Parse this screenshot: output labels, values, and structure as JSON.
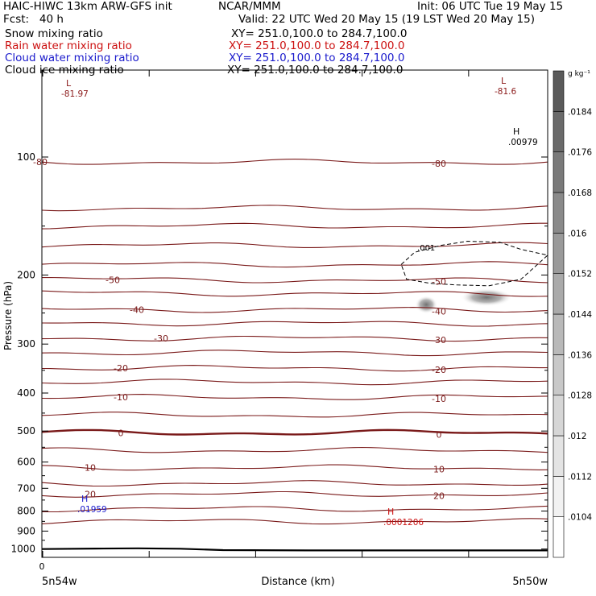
{
  "header": {
    "title_left": "HAIC-HIWC 13km ARW-GFS init",
    "title_center": "NCAR/MMM",
    "init": "Init: 06 UTC Tue 19 May 15",
    "fcst": "Fcst:   40 h",
    "valid": "Valid: 22 UTC Wed 20 May 15 (19 LST Wed 20 May 15)"
  },
  "fields": [
    {
      "label": "Snow mixing ratio",
      "xy": "XY= 251.0,100.0 to 284.7,100.0",
      "color": "#000000"
    },
    {
      "label": "Rain water mixing ratio",
      "xy": "XY= 251.0,100.0 to 284.7,100.0",
      "color": "#cc1111"
    },
    {
      "label": "Cloud water mixing ratio",
      "xy": "XY= 251.0,100.0 to 284.7,100.0",
      "color": "#1a1acc"
    },
    {
      "label": "Cloud ice mixing ratio",
      "xy": "XY= 251.0,100.0 to 284.7,100.0",
      "color": "#000000"
    }
  ],
  "chart_data": {
    "type": "cross-section contour",
    "ylabel": "Pressure (hPa)",
    "xlabel": "Distance (km)",
    "y_scale": "log",
    "ylim": [
      1050,
      60
    ],
    "xlim": [
      0,
      95
    ],
    "y_ticks": [
      100,
      200,
      300,
      400,
      500,
      600,
      700,
      800,
      900,
      1000
    ],
    "x_ticks": [
      0,
      20,
      40,
      60,
      80
    ],
    "x_tick_labels_shown": [
      {
        "x": 0,
        "label": "0"
      }
    ],
    "x_end_labels": {
      "left": "5n54w",
      "right": "5n50w"
    },
    "temperature_contours_C": [
      {
        "level": -80,
        "label": "-80",
        "p_left": 103,
        "p_right": 103
      },
      {
        "level": -70,
        "p_left": 135,
        "p_right": 135
      },
      {
        "level": -65,
        "p_left": 150,
        "p_right": 150
      },
      {
        "level": -60,
        "p_left": 168,
        "p_right": 168
      },
      {
        "level": -55,
        "p_left": 188,
        "p_right": 188
      },
      {
        "level": -50,
        "label": "-50",
        "p_left": 205,
        "p_right": 207
      },
      {
        "level": -45,
        "p_left": 222,
        "p_right": 224
      },
      {
        "level": -40,
        "label": "-40",
        "p_left": 245,
        "p_right": 245
      },
      {
        "level": -35,
        "p_left": 265,
        "p_right": 266
      },
      {
        "level": -30,
        "label": "-30",
        "p_left": 290,
        "p_right": 290
      },
      {
        "level": -25,
        "p_left": 315,
        "p_right": 316
      },
      {
        "level": -20,
        "label": "-20",
        "p_left": 345,
        "p_right": 346
      },
      {
        "level": -15,
        "p_left": 375,
        "p_right": 375
      },
      {
        "level": -10,
        "label": "-10",
        "p_left": 410,
        "p_right": 410
      },
      {
        "level": -5,
        "p_left": 455,
        "p_right": 455
      },
      {
        "level": 0,
        "label": "0",
        "p_left": 505,
        "p_right": 505
      },
      {
        "level": 5,
        "p_left": 560,
        "p_right": 560
      },
      {
        "level": 10,
        "label": "10",
        "p_left": 620,
        "p_right": 620
      },
      {
        "level": 15,
        "p_left": 680,
        "p_right": 680
      },
      {
        "level": 20,
        "label": "20",
        "p_left": 725,
        "p_right": 725
      },
      {
        "level": 25,
        "p_left": 790,
        "p_right": 790
      },
      {
        "level": 30,
        "p_left": 850,
        "p_right": 850
      }
    ],
    "extrema_labels": [
      {
        "text": "L",
        "sub": "-81.97",
        "color": "#8b1a1a"
      },
      {
        "text": "L",
        "sub": "-81.6",
        "color": "#8b1a1a"
      },
      {
        "text": "H",
        "sub": ".00979",
        "color": "#000000"
      },
      {
        "text": "H",
        "sub": ".01959",
        "color": "#1a1acc"
      },
      {
        "text": "H",
        "sub": ".0001206",
        "color": "#cc1111"
      }
    ],
    "snow_contour_label": ".001",
    "colorbar": {
      "unit": "g kg⁻¹",
      "levels": [
        ".0104",
        ".0112",
        ".012",
        ".0128",
        ".0136",
        ".0144",
        ".0152",
        ".016",
        ".0168",
        ".0176",
        ".0184"
      ],
      "colors": [
        "#ffffff",
        "#f2f2f2",
        "#e4e4e4",
        "#d6d6d6",
        "#c8c8c8",
        "#b9b9b9",
        "#aaaaaa",
        "#9a9a9a",
        "#8a8a8a",
        "#7a7a7a",
        "#6a6a6a",
        "#5a5a5a"
      ]
    }
  }
}
